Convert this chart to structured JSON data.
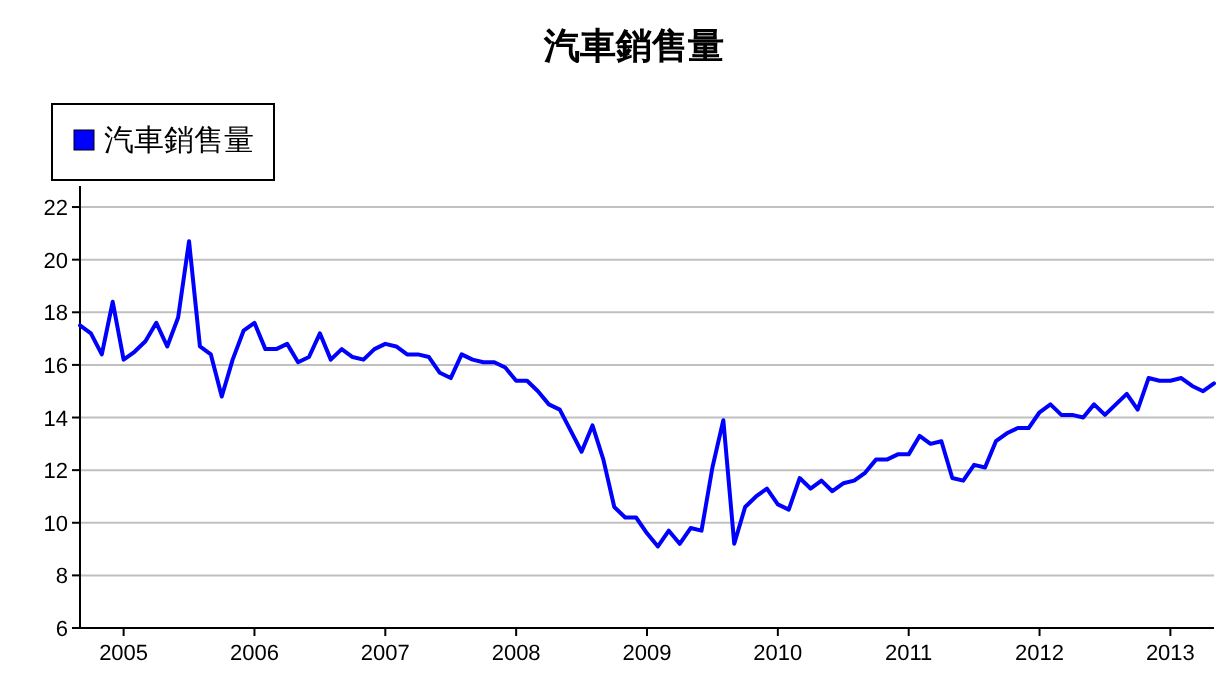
{
  "chart_data": {
    "type": "line",
    "title": "汽車銷售量",
    "x": [
      "2004-09",
      "2004-10",
      "2004-11",
      "2004-12",
      "2005-01",
      "2005-02",
      "2005-03",
      "2005-04",
      "2005-05",
      "2005-06",
      "2005-07",
      "2005-08",
      "2005-09",
      "2005-10",
      "2005-11",
      "2005-12",
      "2006-01",
      "2006-02",
      "2006-03",
      "2006-04",
      "2006-05",
      "2006-06",
      "2006-07",
      "2006-08",
      "2006-09",
      "2006-10",
      "2006-11",
      "2006-12",
      "2007-01",
      "2007-02",
      "2007-03",
      "2007-04",
      "2007-05",
      "2007-06",
      "2007-07",
      "2007-08",
      "2007-09",
      "2007-10",
      "2007-11",
      "2007-12",
      "2008-01",
      "2008-02",
      "2008-03",
      "2008-04",
      "2008-05",
      "2008-06",
      "2008-07",
      "2008-08",
      "2008-09",
      "2008-10",
      "2008-11",
      "2008-12",
      "2009-01",
      "2009-02",
      "2009-03",
      "2009-04",
      "2009-05",
      "2009-06",
      "2009-07",
      "2009-08",
      "2009-09",
      "2009-10",
      "2009-11",
      "2009-12",
      "2010-01",
      "2010-02",
      "2010-03",
      "2010-04",
      "2010-05",
      "2010-06",
      "2010-07",
      "2010-08",
      "2010-09",
      "2010-10",
      "2010-11",
      "2010-12",
      "2011-01",
      "2011-02",
      "2011-03",
      "2011-04",
      "2011-05",
      "2011-06",
      "2011-07",
      "2011-08",
      "2011-09",
      "2011-10",
      "2011-11",
      "2011-12",
      "2012-01",
      "2012-02",
      "2012-03",
      "2012-04",
      "2012-05",
      "2012-06",
      "2012-07",
      "2012-08",
      "2012-09",
      "2012-10",
      "2012-11",
      "2012-12",
      "2013-01",
      "2013-02",
      "2013-03",
      "2013-04",
      "2013-05"
    ],
    "series": [
      {
        "name": "汽車銷售量",
        "color": "#0000ff",
        "values": [
          17.5,
          17.2,
          16.4,
          18.4,
          16.2,
          16.5,
          16.9,
          17.6,
          16.7,
          17.8,
          20.7,
          16.7,
          16.4,
          14.8,
          16.2,
          17.3,
          17.6,
          16.6,
          16.6,
          16.8,
          16.1,
          16.3,
          17.2,
          16.2,
          16.6,
          16.3,
          16.2,
          16.6,
          16.8,
          16.7,
          16.4,
          16.4,
          16.3,
          15.7,
          15.5,
          16.4,
          16.2,
          16.1,
          16.1,
          15.9,
          15.4,
          15.4,
          15.0,
          14.5,
          14.3,
          13.5,
          12.7,
          13.7,
          12.4,
          10.6,
          10.2,
          10.2,
          9.6,
          9.1,
          9.7,
          9.2,
          9.8,
          9.7,
          12.1,
          13.9,
          9.2,
          10.6,
          11.0,
          11.3,
          10.7,
          10.5,
          11.7,
          11.3,
          11.6,
          11.2,
          11.5,
          11.6,
          11.9,
          12.4,
          12.4,
          12.6,
          12.6,
          13.3,
          13.0,
          13.1,
          11.7,
          11.6,
          12.2,
          12.1,
          13.1,
          13.4,
          13.6,
          13.6,
          14.2,
          14.5,
          14.1,
          14.1,
          14.0,
          14.5,
          14.1,
          14.5,
          14.9,
          14.3,
          15.5,
          15.4,
          15.4,
          15.5,
          15.2,
          15.0,
          15.3
        ]
      }
    ],
    "xlim": [
      "2004-09",
      "2013-05"
    ],
    "xticks": [
      "2005",
      "2006",
      "2007",
      "2008",
      "2009",
      "2010",
      "2011",
      "2012",
      "2013"
    ],
    "ylim": [
      6,
      22.8
    ],
    "yticks": [
      6,
      8,
      10,
      12,
      14,
      16,
      18,
      20,
      22
    ],
    "grid": "y",
    "legend": "top left",
    "marker": "none",
    "line_style": "solid"
  }
}
